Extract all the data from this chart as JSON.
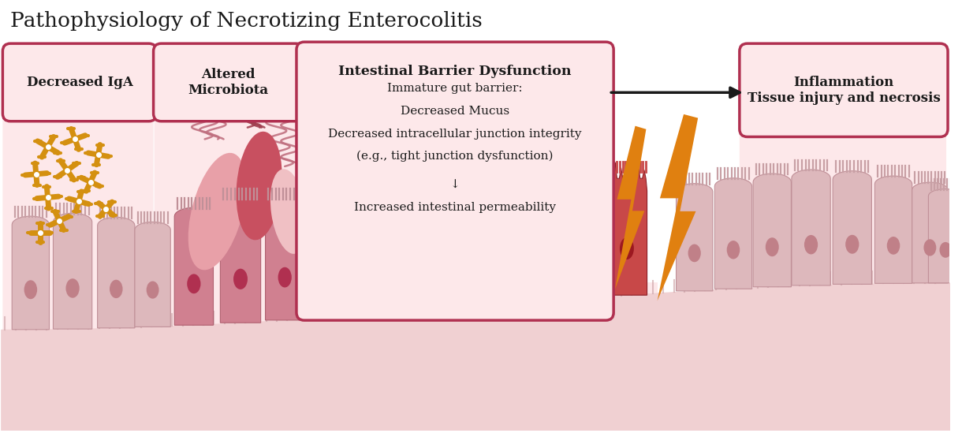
{
  "title": "Pathophysiology of Necrotizing Enterocolitis",
  "title_fontsize": 19,
  "bg_color": "#ffffff",
  "box_fill": "#fde8ea",
  "box_edge": "#b03050",
  "pink_panel_color": "#fde8ea",
  "orange_color": "#e08010",
  "healthy_villus_color": "#ddb8bc",
  "damaged_villus_color": "#c84848",
  "mid_villus_color": "#d07888",
  "base_color": "#f0d0d2",
  "base_curve_color": "#e8c4c8",
  "nucleus_healthy": "#c08088",
  "nucleus_damaged": "#9c1820",
  "antibody_color": "#d49010",
  "antibody_bar_color": "#b07008",
  "bacteria_dark": "#c85060",
  "bacteria_mid": "#e8a0a8",
  "bacteria_light": "#f0c0c4",
  "flagella_color": "#c07080",
  "box1_text": "Decreased IgA",
  "box2_text": "Altered\nMicrobiota",
  "box3_title": "Intestinal Barrier Dysfunction",
  "box3_body": [
    "Immature gut barrier:",
    "Decreased Mucus",
    "Decreased intracellular junction integrity",
    "(e.g., tight junction dysfunction)",
    "↓",
    "Increased intestinal permeability"
  ],
  "box4_text": "Inflammation\nTissue injury and necrosis",
  "arrow_color": "#1a1a1a",
  "microvilli_color": "#d0a8ac",
  "intestinal_wall_color": "#e8c0c4",
  "wall_curve_color": "#ddb8bc"
}
